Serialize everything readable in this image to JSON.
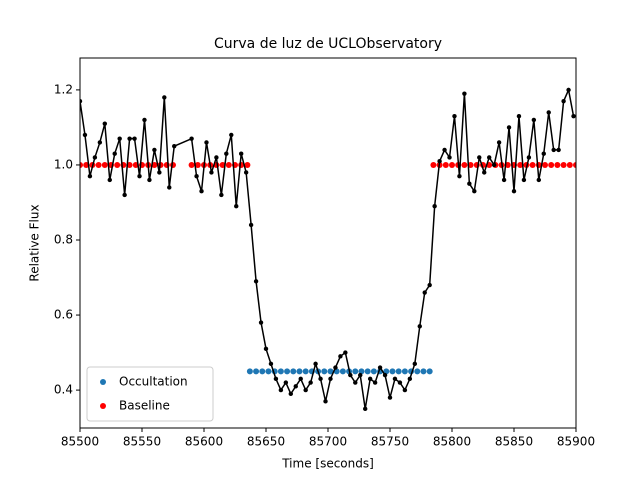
{
  "chart_data": {
    "type": "line",
    "title": "Curva de luz de UCLObservatory",
    "xlabel": "Time [seconds]",
    "ylabel": "Relative Flux",
    "xlim": [
      85500,
      85900
    ],
    "ylim": [
      0.299,
      1.285
    ],
    "xticks": [
      85500,
      85550,
      85600,
      85650,
      85700,
      85750,
      85800,
      85850,
      85900
    ],
    "yticks": [
      0.4,
      0.6,
      0.8,
      {
        "value": 1.0,
        "label": "1.0"
      },
      1.2
    ],
    "legend": "lower left",
    "series": [
      {
        "name": "Occultation",
        "color": "#1f77b4",
        "style": "markers",
        "x": [
          85637,
          85642,
          85647,
          85652,
          85657,
          85662,
          85667,
          85672,
          85677,
          85682,
          85687,
          85692,
          85697,
          85702,
          85707,
          85712,
          85717,
          85722,
          85727,
          85732,
          85737,
          85742,
          85747,
          85752,
          85757,
          85762,
          85767,
          85772,
          85777,
          85782
        ],
        "values": [
          0.45,
          0.45,
          0.45,
          0.45,
          0.45,
          0.45,
          0.45,
          0.45,
          0.45,
          0.45,
          0.45,
          0.45,
          0.45,
          0.45,
          0.45,
          0.45,
          0.45,
          0.45,
          0.45,
          0.45,
          0.45,
          0.45,
          0.45,
          0.45,
          0.45,
          0.45,
          0.45,
          0.45,
          0.45,
          0.45
        ]
      },
      {
        "name": "Baseline",
        "color": "#ff0000",
        "style": "markers",
        "x": [
          85500,
          85505,
          85510,
          85515,
          85520,
          85525,
          85530,
          85535,
          85540,
          85545,
          85550,
          85555,
          85560,
          85565,
          85570,
          85575,
          85590,
          85595,
          85600,
          85605,
          85610,
          85615,
          85620,
          85625,
          85630,
          85635,
          85785,
          85790,
          85795,
          85800,
          85805,
          85810,
          85815,
          85820,
          85825,
          85830,
          85835,
          85840,
          85845,
          85850,
          85855,
          85860,
          85865,
          85870,
          85875,
          85880,
          85885,
          85890,
          85895,
          85900
        ],
        "values": [
          1,
          1,
          1,
          1,
          1,
          1,
          1,
          1,
          1,
          1,
          1,
          1,
          1,
          1,
          1,
          1,
          1,
          1,
          1,
          1,
          1,
          1,
          1,
          1,
          1,
          1,
          1,
          1,
          1,
          1,
          1,
          1,
          1,
          1,
          1,
          1,
          1,
          1,
          1,
          1,
          1,
          1,
          1,
          1,
          1,
          1,
          1,
          1,
          1,
          1
        ]
      },
      {
        "color": "#000000",
        "style": "line-markers",
        "x": [
          85500,
          85504,
          85508,
          85512,
          85516,
          85520,
          85524,
          85528,
          85532,
          85536,
          85540,
          85544,
          85548,
          85552,
          85556,
          85560,
          85564,
          85568,
          85572,
          85576,
          85590,
          85594,
          85598,
          85602,
          85606,
          85610,
          85614,
          85618,
          85622,
          85626,
          85630,
          85634,
          85638,
          85642,
          85646,
          85650,
          85654,
          85658,
          85662,
          85666,
          85670,
          85674,
          85678,
          85682,
          85686,
          85690,
          85694,
          85698,
          85702,
          85706,
          85710,
          85714,
          85718,
          85722,
          85726,
          85730,
          85734,
          85738,
          85742,
          85746,
          85750,
          85754,
          85758,
          85762,
          85766,
          85770,
          85774,
          85778,
          85782,
          85786,
          85790,
          85794,
          85798,
          85802,
          85806,
          85810,
          85814,
          85818,
          85822,
          85826,
          85830,
          85834,
          85838,
          85842,
          85846,
          85850,
          85854,
          85858,
          85862,
          85866,
          85870,
          85874,
          85878,
          85882,
          85886,
          85890,
          85894,
          85898
        ],
        "values": [
          1.17,
          1.08,
          0.97,
          1.02,
          1.06,
          1.11,
          0.96,
          1.03,
          1.07,
          0.92,
          1.07,
          1.07,
          0.97,
          1.12,
          0.96,
          1.04,
          0.98,
          1.18,
          0.94,
          1.05,
          1.07,
          0.97,
          0.93,
          1.06,
          0.98,
          1.02,
          0.92,
          1.03,
          1.08,
          0.89,
          1.03,
          0.98,
          0.84,
          0.69,
          0.58,
          0.51,
          0.47,
          0.43,
          0.4,
          0.42,
          0.39,
          0.41,
          0.43,
          0.4,
          0.42,
          0.47,
          0.43,
          0.37,
          0.43,
          0.46,
          0.49,
          0.5,
          0.44,
          0.42,
          0.44,
          0.35,
          0.43,
          0.42,
          0.46,
          0.44,
          0.38,
          0.43,
          0.42,
          0.4,
          0.43,
          0.47,
          0.57,
          0.66,
          0.68,
          0.89,
          1.01,
          1.04,
          1.02,
          1.13,
          0.97,
          1.19,
          0.95,
          0.93,
          1.02,
          0.98,
          1.02,
          1.0,
          1.06,
          0.96,
          1.1,
          0.93,
          1.13,
          0.96,
          1.02,
          1.12,
          0.96,
          1.03,
          1.14,
          1.04,
          1.04,
          1.17,
          1.2,
          1.13
        ]
      }
    ]
  }
}
